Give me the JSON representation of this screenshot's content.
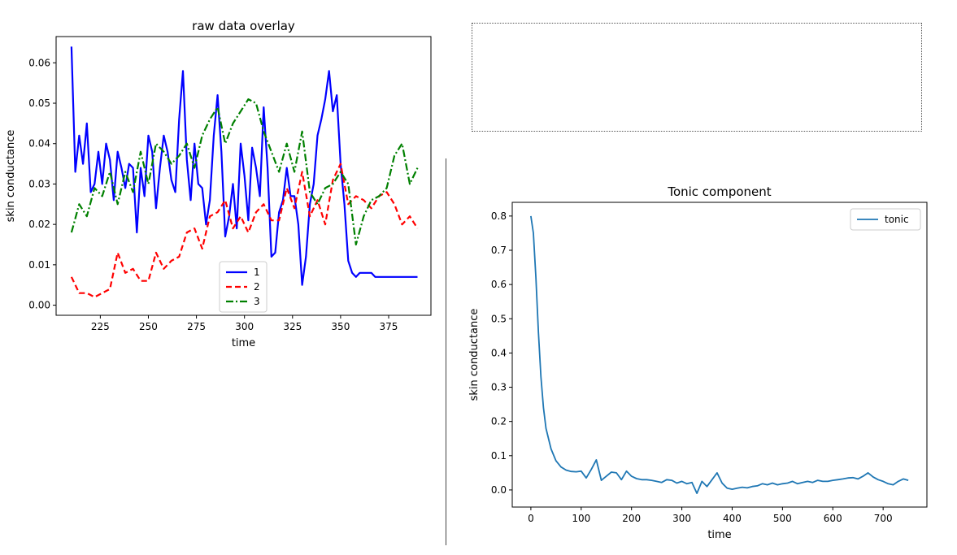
{
  "charts": [
    {
      "type": "line",
      "title": "raw data overlay",
      "xlabel": "time",
      "ylabel": "skin conductance",
      "xlim": [
        202,
        397
      ],
      "ylim": [
        -0.0025,
        0.0665
      ],
      "xticks": [
        225,
        250,
        275,
        300,
        325,
        350,
        375
      ],
      "xtick_labels": [
        "225",
        "250",
        "275",
        "300",
        "325",
        "350",
        "375"
      ],
      "yticks": [
        0.0,
        0.01,
        0.02,
        0.03,
        0.04,
        0.05,
        0.06
      ],
      "ytick_labels": [
        "0.00",
        "0.01",
        "0.02",
        "0.03",
        "0.04",
        "0.05",
        "0.06"
      ],
      "legend": {
        "position": "lower-center"
      },
      "series": [
        {
          "name": "1",
          "color": "#0000ff",
          "dash": "solid",
          "x": [
            210,
            212,
            214,
            216,
            218,
            220,
            222,
            224,
            226,
            228,
            230,
            232,
            234,
            236,
            238,
            240,
            242,
            244,
            246,
            248,
            250,
            252,
            254,
            256,
            258,
            260,
            262,
            264,
            266,
            268,
            270,
            272,
            274,
            276,
            278,
            280,
            282,
            284,
            286,
            288,
            290,
            292,
            294,
            296,
            298,
            300,
            302,
            304,
            306,
            308,
            310,
            312,
            314,
            316,
            318,
            320,
            322,
            324,
            326,
            328,
            330,
            332,
            334,
            336,
            338,
            340,
            342,
            344,
            346,
            348,
            350,
            352,
            354,
            356,
            358,
            360,
            362,
            364,
            366,
            368,
            370,
            372,
            374,
            376,
            378,
            380,
            382,
            384,
            386,
            388,
            390
          ],
          "y": [
            0.064,
            0.033,
            0.042,
            0.035,
            0.045,
            0.028,
            0.03,
            0.038,
            0.03,
            0.04,
            0.036,
            0.026,
            0.038,
            0.034,
            0.029,
            0.035,
            0.034,
            0.018,
            0.034,
            0.027,
            0.042,
            0.038,
            0.024,
            0.034,
            0.042,
            0.038,
            0.031,
            0.028,
            0.046,
            0.058,
            0.036,
            0.026,
            0.04,
            0.03,
            0.029,
            0.02,
            0.026,
            0.042,
            0.052,
            0.038,
            0.017,
            0.022,
            0.03,
            0.019,
            0.04,
            0.032,
            0.021,
            0.039,
            0.034,
            0.027,
            0.049,
            0.034,
            0.012,
            0.013,
            0.023,
            0.026,
            0.034,
            0.027,
            0.027,
            0.02,
            0.005,
            0.012,
            0.025,
            0.03,
            0.042,
            0.046,
            0.051,
            0.058,
            0.048,
            0.052,
            0.035,
            0.025,
            0.011,
            0.008,
            0.007,
            0.008,
            0.008,
            0.008,
            0.008,
            0.007,
            0.007,
            0.007,
            0.007,
            0.007,
            0.007,
            0.007,
            0.007,
            0.007,
            0.007,
            0.007,
            0.007
          ]
        },
        {
          "name": "2",
          "color": "#ff0000",
          "dash": "dashed",
          "x": [
            210,
            214,
            218,
            222,
            226,
            230,
            234,
            238,
            242,
            246,
            250,
            254,
            258,
            262,
            266,
            270,
            274,
            278,
            282,
            286,
            290,
            294,
            298,
            302,
            306,
            310,
            314,
            318,
            322,
            326,
            330,
            334,
            338,
            342,
            346,
            350,
            354,
            358,
            362,
            366,
            370,
            374,
            378,
            382,
            386,
            390
          ],
          "y": [
            0.007,
            0.003,
            0.003,
            0.002,
            0.003,
            0.004,
            0.013,
            0.008,
            0.009,
            0.006,
            0.006,
            0.013,
            0.009,
            0.011,
            0.012,
            0.018,
            0.019,
            0.014,
            0.022,
            0.023,
            0.026,
            0.019,
            0.022,
            0.018,
            0.023,
            0.025,
            0.021,
            0.021,
            0.029,
            0.024,
            0.033,
            0.022,
            0.026,
            0.02,
            0.031,
            0.035,
            0.025,
            0.027,
            0.026,
            0.024,
            0.027,
            0.028,
            0.025,
            0.02,
            0.022,
            0.019
          ]
        },
        {
          "name": "3",
          "color": "#008000",
          "dash": "dashdot",
          "x": [
            210,
            214,
            218,
            222,
            226,
            230,
            234,
            238,
            242,
            246,
            250,
            254,
            258,
            262,
            266,
            270,
            274,
            278,
            282,
            286,
            290,
            294,
            298,
            302,
            306,
            310,
            314,
            318,
            322,
            326,
            330,
            334,
            338,
            342,
            346,
            350,
            354,
            358,
            362,
            366,
            370,
            374,
            378,
            382,
            386,
            390
          ],
          "y": [
            0.018,
            0.025,
            0.022,
            0.029,
            0.027,
            0.033,
            0.025,
            0.033,
            0.028,
            0.038,
            0.03,
            0.04,
            0.038,
            0.035,
            0.037,
            0.04,
            0.034,
            0.042,
            0.046,
            0.049,
            0.04,
            0.045,
            0.048,
            0.051,
            0.05,
            0.043,
            0.038,
            0.033,
            0.04,
            0.033,
            0.043,
            0.028,
            0.025,
            0.029,
            0.03,
            0.033,
            0.03,
            0.015,
            0.022,
            0.026,
            0.027,
            0.029,
            0.037,
            0.04,
            0.03,
            0.034
          ]
        }
      ]
    },
    {
      "type": "line",
      "title": "Tonic component",
      "xlabel": "time",
      "ylabel": "skin conductance",
      "xlim": [
        -37,
        787
      ],
      "ylim": [
        -0.05,
        0.84
      ],
      "xticks": [
        0,
        100,
        200,
        300,
        400,
        500,
        600,
        700
      ],
      "xtick_labels": [
        "0",
        "100",
        "200",
        "300",
        "400",
        "500",
        "600",
        "700"
      ],
      "yticks": [
        0.0,
        0.1,
        0.2,
        0.3,
        0.4,
        0.5,
        0.6,
        0.7,
        0.8
      ],
      "ytick_labels": [
        "0.0",
        "0.1",
        "0.2",
        "0.3",
        "0.4",
        "0.5",
        "0.6",
        "0.7",
        "0.8"
      ],
      "legend": {
        "position": "top-right"
      },
      "series": [
        {
          "name": "tonic",
          "color": "#1f77b4",
          "dash": "solid",
          "x": [
            0,
            5,
            10,
            15,
            20,
            25,
            30,
            40,
            50,
            60,
            70,
            80,
            90,
            100,
            110,
            120,
            130,
            140,
            150,
            160,
            170,
            180,
            190,
            200,
            210,
            220,
            230,
            240,
            250,
            260,
            270,
            280,
            290,
            300,
            310,
            320,
            330,
            340,
            350,
            360,
            370,
            380,
            390,
            400,
            410,
            420,
            430,
            440,
            450,
            460,
            470,
            480,
            490,
            500,
            510,
            520,
            530,
            540,
            550,
            560,
            570,
            580,
            590,
            600,
            610,
            620,
            630,
            640,
            650,
            660,
            670,
            680,
            690,
            700,
            710,
            720,
            730,
            740,
            750
          ],
          "y": [
            0.8,
            0.75,
            0.62,
            0.46,
            0.33,
            0.24,
            0.18,
            0.12,
            0.085,
            0.067,
            0.058,
            0.054,
            0.053,
            0.055,
            0.035,
            0.06,
            0.088,
            0.028,
            0.04,
            0.052,
            0.05,
            0.03,
            0.055,
            0.04,
            0.033,
            0.03,
            0.03,
            0.028,
            0.025,
            0.022,
            0.03,
            0.028,
            0.02,
            0.025,
            0.018,
            0.022,
            -0.01,
            0.025,
            0.01,
            0.03,
            0.05,
            0.02,
            0.005,
            0.002,
            0.005,
            0.008,
            0.006,
            0.01,
            0.012,
            0.018,
            0.015,
            0.02,
            0.015,
            0.018,
            0.02,
            0.025,
            0.018,
            0.022,
            0.025,
            0.022,
            0.028,
            0.025,
            0.025,
            0.028,
            0.03,
            0.032,
            0.035,
            0.036,
            0.032,
            0.04,
            0.05,
            0.038,
            0.03,
            0.025,
            0.018,
            0.015,
            0.025,
            0.032,
            0.028
          ]
        }
      ]
    }
  ]
}
